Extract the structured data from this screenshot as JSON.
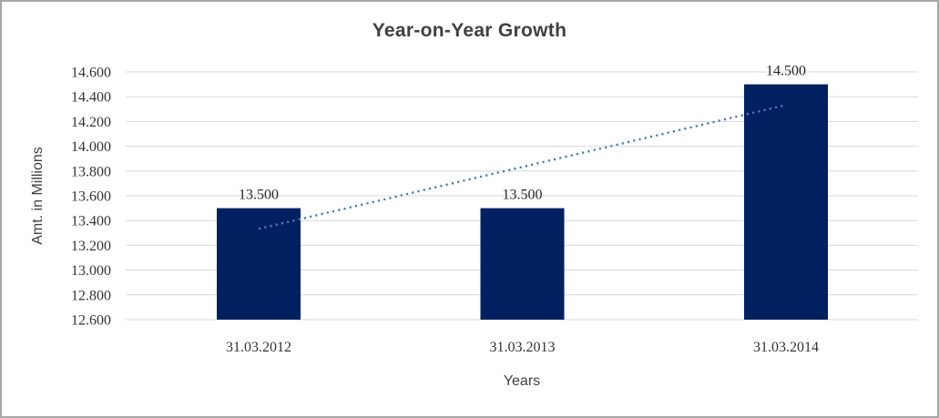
{
  "chart_data": {
    "type": "bar",
    "title": "Year-on-Year Growth",
    "xlabel": "Years",
    "ylabel": "Amt. in Millions",
    "categories": [
      "31.03.2012",
      "31.03.2013",
      "31.03.2014"
    ],
    "values": [
      13.5,
      13.5,
      14.5
    ],
    "data_labels": [
      "13.500",
      "13.500",
      "14.500"
    ],
    "y_tick_labels": [
      "12.600",
      "12.800",
      "13.000",
      "13.200",
      "13.400",
      "13.600",
      "13.800",
      "14.000",
      "14.200",
      "14.400",
      "14.600"
    ],
    "ylim": [
      12.6,
      14.6
    ],
    "y_tick_step": 0.2,
    "grid": true,
    "legend": "none",
    "trendline": {
      "style": "dotted",
      "start_value": 13.333,
      "end_value": 14.333,
      "color": "#4a7ebb"
    },
    "colors": {
      "bar": "#002060",
      "gridline": "#d9d9d9",
      "title_text": "#404040",
      "tick_text": "#333333",
      "frame_border": "#a6a6a6"
    }
  }
}
